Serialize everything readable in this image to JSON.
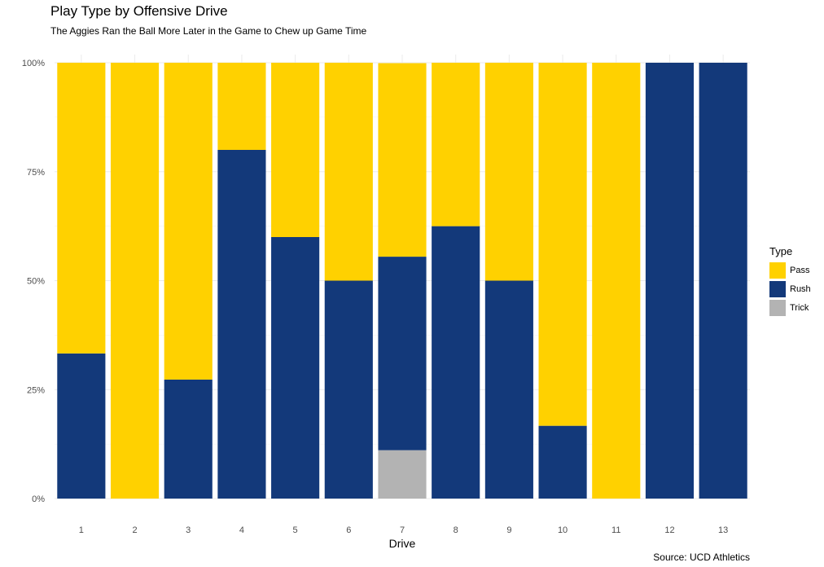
{
  "chart_data": {
    "type": "bar",
    "stacked": true,
    "percent": true,
    "title": "Play Type by Offensive Drive",
    "subtitle": "The Aggies Ran the Ball More Later in the Game to Chew up Game Time",
    "caption": "Source: UCD Athletics",
    "xlabel": "Drive",
    "ylabel": "",
    "categories": [
      "1",
      "2",
      "3",
      "4",
      "5",
      "6",
      "7",
      "8",
      "9",
      "10",
      "11",
      "12",
      "13"
    ],
    "ylim": [
      0,
      1
    ],
    "yticks": [
      {
        "value": 0,
        "label": "0%"
      },
      {
        "value": 0.25,
        "label": "25%"
      },
      {
        "value": 0.5,
        "label": "50%"
      },
      {
        "value": 0.75,
        "label": "75%"
      },
      {
        "value": 1,
        "label": "100%"
      }
    ],
    "series": [
      {
        "name": "Trick",
        "color": "#B3B3B3",
        "values": [
          0,
          0,
          0,
          0,
          0,
          0,
          0.111,
          0,
          0,
          0,
          0,
          0,
          0
        ]
      },
      {
        "name": "Rush",
        "color": "#13397A",
        "values": [
          0.333,
          0,
          0.273,
          0.8,
          0.6,
          0.5,
          0.444,
          0.625,
          0.5,
          0.167,
          0,
          1,
          1
        ]
      },
      {
        "name": "Pass",
        "color": "#FFD100",
        "values": [
          0.667,
          1,
          0.727,
          0.2,
          0.4,
          0.5,
          0.444,
          0.375,
          0.5,
          0.833,
          1,
          0,
          0
        ]
      }
    ],
    "legend": {
      "title": "Type",
      "position": "right",
      "items": [
        {
          "label": "Pass",
          "color": "#FFD100"
        },
        {
          "label": "Rush",
          "color": "#13397A"
        },
        {
          "label": "Trick",
          "color": "#B3B3B3"
        }
      ]
    },
    "grid": true
  }
}
